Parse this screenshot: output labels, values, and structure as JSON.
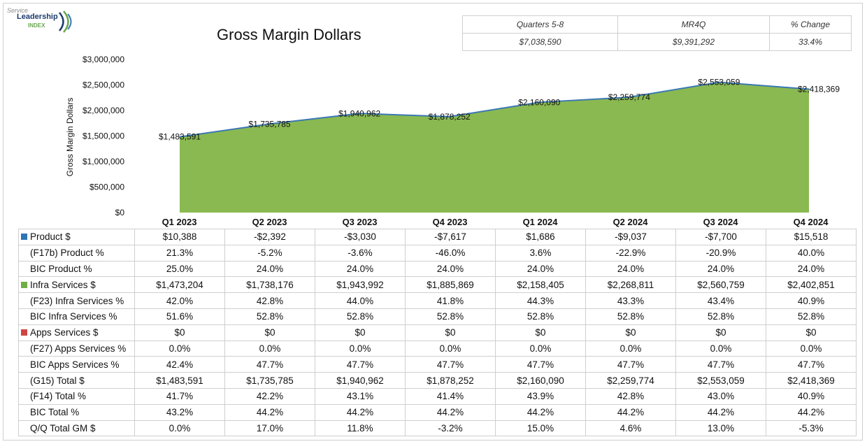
{
  "logo": {
    "line1": "Service",
    "line2": "Leadership",
    "line3": "INDEX"
  },
  "title": "Gross Margin Dollars",
  "summary": {
    "headers": [
      "Quarters 5-8",
      "MR4Q",
      "% Change"
    ],
    "values": [
      "$7,038,590",
      "$9,391,292",
      "33.4%"
    ]
  },
  "colors": {
    "area": "#8ab951",
    "line": "#3b78b4",
    "product": "#2e75b6",
    "infra": "#70ad47",
    "apps": "#d04545"
  },
  "chart_data": {
    "type": "area",
    "title": "Gross Margin Dollars",
    "ylabel": "Gross Margin Dollars",
    "categories": [
      "Q1 2023",
      "Q2 2023",
      "Q3 2023",
      "Q4 2023",
      "Q1 2024",
      "Q2 2024",
      "Q3 2024",
      "Q4 2024"
    ],
    "values": [
      1483591,
      1735785,
      1940962,
      1878252,
      2160090,
      2259774,
      2553059,
      2418369
    ],
    "data_labels": [
      "$1,483,591",
      "$1,735,785",
      "$1,940,962",
      "$1,878,252",
      "$2,160,090",
      "$2,259,774",
      "$2,553,059",
      "$2,418,369"
    ],
    "ylim": [
      0,
      3000000
    ],
    "yticks": [
      0,
      500000,
      1000000,
      1500000,
      2000000,
      2500000,
      3000000
    ],
    "ytick_labels": [
      "$0",
      "$500,000",
      "$1,000,000",
      "$1,500,000",
      "$2,000,000",
      "$2,500,000",
      "$3,000,000"
    ],
    "grid": false,
    "legend": "table"
  },
  "table": {
    "rows": [
      {
        "label": "Product $",
        "swatch": "product",
        "values": [
          "$10,388",
          "-$2,392",
          "-$3,030",
          "-$7,617",
          "$1,686",
          "-$9,037",
          "-$7,700",
          "$15,518"
        ]
      },
      {
        "label": "(F17b) Product %",
        "values": [
          "21.3%",
          "-5.2%",
          "-3.6%",
          "-46.0%",
          "3.6%",
          "-22.9%",
          "-20.9%",
          "40.0%"
        ]
      },
      {
        "label": "BIC Product %",
        "values": [
          "25.0%",
          "24.0%",
          "24.0%",
          "24.0%",
          "24.0%",
          "24.0%",
          "24.0%",
          "24.0%"
        ]
      },
      {
        "label": "Infra Services $",
        "swatch": "infra",
        "values": [
          "$1,473,204",
          "$1,738,176",
          "$1,943,992",
          "$1,885,869",
          "$2,158,405",
          "$2,268,811",
          "$2,560,759",
          "$2,402,851"
        ]
      },
      {
        "label": "(F23) Infra Services %",
        "values": [
          "42.0%",
          "42.8%",
          "44.0%",
          "41.8%",
          "44.3%",
          "43.3%",
          "43.4%",
          "40.9%"
        ]
      },
      {
        "label": "BIC Infra Services %",
        "values": [
          "51.6%",
          "52.8%",
          "52.8%",
          "52.8%",
          "52.8%",
          "52.8%",
          "52.8%",
          "52.8%"
        ]
      },
      {
        "label": "Apps Services $",
        "swatch": "apps",
        "values": [
          "$0",
          "$0",
          "$0",
          "$0",
          "$0",
          "$0",
          "$0",
          "$0"
        ]
      },
      {
        "label": "(F27) Apps Services %",
        "values": [
          "0.0%",
          "0.0%",
          "0.0%",
          "0.0%",
          "0.0%",
          "0.0%",
          "0.0%",
          "0.0%"
        ]
      },
      {
        "label": "BIC Apps Services %",
        "values": [
          "42.4%",
          "47.7%",
          "47.7%",
          "47.7%",
          "47.7%",
          "47.7%",
          "47.7%",
          "47.7%"
        ]
      },
      {
        "label": "(G15) Total $",
        "values": [
          "$1,483,591",
          "$1,735,785",
          "$1,940,962",
          "$1,878,252",
          "$2,160,090",
          "$2,259,774",
          "$2,553,059",
          "$2,418,369"
        ]
      },
      {
        "label": "(F14) Total %",
        "values": [
          "41.7%",
          "42.2%",
          "43.1%",
          "41.4%",
          "43.9%",
          "42.8%",
          "43.0%",
          "40.9%"
        ]
      },
      {
        "label": "BIC Total %",
        "values": [
          "43.2%",
          "44.2%",
          "44.2%",
          "44.2%",
          "44.2%",
          "44.2%",
          "44.2%",
          "44.2%"
        ]
      },
      {
        "label": "Q/Q Total GM $",
        "values": [
          "0.0%",
          "17.0%",
          "11.8%",
          "-3.2%",
          "15.0%",
          "4.6%",
          "13.0%",
          "-5.3%"
        ]
      }
    ]
  }
}
